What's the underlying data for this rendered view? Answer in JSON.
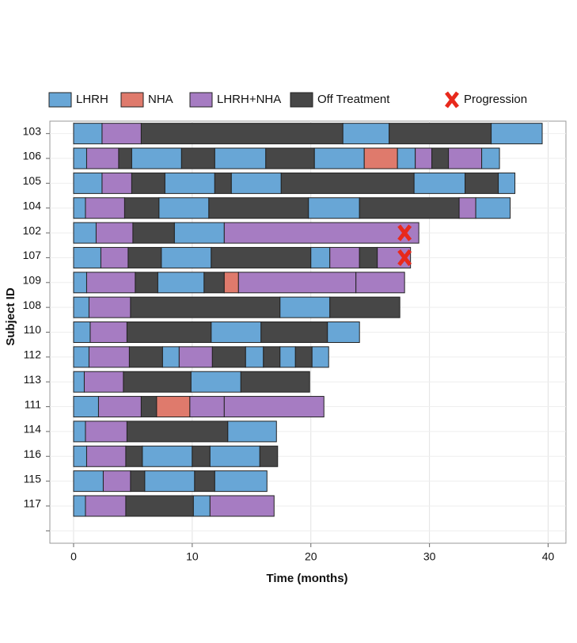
{
  "chart_data": {
    "type": "swimmer",
    "x_label": "Time (months)",
    "y_label": "Subject ID",
    "xlim": [
      -2,
      41.5
    ],
    "xticks": [
      0,
      10,
      20,
      30,
      40
    ],
    "grid": true,
    "legend_position": "top",
    "series": [
      {
        "name": "LHRH",
        "color": "#68a6d6"
      },
      {
        "name": "NHA",
        "color": "#df7a6c"
      },
      {
        "name": "LHRH+NHA",
        "color": "#a67cc2"
      },
      {
        "name": "Off Treatment",
        "color": "#474747"
      }
    ],
    "progression_label": "Progression",
    "progression_color": "#e8291c",
    "categories": [
      "103",
      "106",
      "105",
      "104",
      "102",
      "107",
      "109",
      "108",
      "110",
      "112",
      "113",
      "111",
      "114",
      "116",
      "115",
      "117",
      null
    ],
    "rows": [
      {
        "segments": [
          {
            "treatment": "LHRH",
            "duration": 2.4
          },
          {
            "treatment": "LHRH+NHA",
            "duration": 3.3
          },
          {
            "treatment": "Off Treatment",
            "duration": 17
          },
          {
            "treatment": "LHRH",
            "duration": 3.9
          },
          {
            "treatment": "Off Treatment",
            "duration": 8.6
          },
          {
            "treatment": "LHRH",
            "duration": 4.3
          }
        ]
      },
      {
        "segments": [
          {
            "treatment": "LHRH",
            "duration": 1.1
          },
          {
            "treatment": "LHRH+NHA",
            "duration": 2.7
          },
          {
            "treatment": "Off Treatment",
            "duration": 1.1
          },
          {
            "treatment": "LHRH",
            "duration": 4.2
          },
          {
            "treatment": "Off Treatment",
            "duration": 2.8
          },
          {
            "treatment": "LHRH",
            "duration": 4.3
          },
          {
            "treatment": "Off Treatment",
            "duration": 4.1
          },
          {
            "treatment": "LHRH",
            "duration": 4.2
          },
          {
            "treatment": "NHA",
            "duration": 2.8
          },
          {
            "treatment": "LHRH",
            "duration": 1.5
          },
          {
            "treatment": "LHRH+NHA",
            "duration": 1.4
          },
          {
            "treatment": "Off Treatment",
            "duration": 1.4
          },
          {
            "treatment": "LHRH+NHA",
            "duration": 2.8
          },
          {
            "treatment": "LHRH",
            "duration": 1.5
          }
        ]
      },
      {
        "segments": [
          {
            "treatment": "LHRH",
            "duration": 2.4
          },
          {
            "treatment": "LHRH+NHA",
            "duration": 2.5
          },
          {
            "treatment": "Off Treatment",
            "duration": 2.8
          },
          {
            "treatment": "LHRH",
            "duration": 4.2
          },
          {
            "treatment": "Off Treatment",
            "duration": 1.4
          },
          {
            "treatment": "LHRH",
            "duration": 4.2
          },
          {
            "treatment": "Off Treatment",
            "duration": 11.2
          },
          {
            "treatment": "LHRH",
            "duration": 4.3
          },
          {
            "treatment": "Off Treatment",
            "duration": 2.8
          },
          {
            "treatment": "LHRH",
            "duration": 1.4
          }
        ]
      },
      {
        "segments": [
          {
            "treatment": "LHRH",
            "duration": 1.0
          },
          {
            "treatment": "LHRH+NHA",
            "duration": 3.3
          },
          {
            "treatment": "Off Treatment",
            "duration": 2.9
          },
          {
            "treatment": "LHRH",
            "duration": 4.2
          },
          {
            "treatment": "Off Treatment",
            "duration": 8.4
          },
          {
            "treatment": "LHRH",
            "duration": 4.3
          },
          {
            "treatment": "Off Treatment",
            "duration": 8.4
          },
          {
            "treatment": "LHRH+NHA",
            "duration": 1.4
          },
          {
            "treatment": "LHRH",
            "duration": 2.9
          }
        ]
      },
      {
        "segments": [
          {
            "treatment": "LHRH",
            "duration": 1.9
          },
          {
            "treatment": "LHRH+NHA",
            "duration": 3.1
          },
          {
            "treatment": "Off Treatment",
            "duration": 3.5
          },
          {
            "treatment": "LHRH",
            "duration": 4.2
          },
          {
            "treatment": "LHRH+NHA",
            "duration": 16.4
          }
        ],
        "progression": 27.9
      },
      {
        "segments": [
          {
            "treatment": "LHRH",
            "duration": 2.3
          },
          {
            "treatment": "LHRH+NHA",
            "duration": 2.3
          },
          {
            "treatment": "Off Treatment",
            "duration": 2.8
          },
          {
            "treatment": "LHRH",
            "duration": 4.2
          },
          {
            "treatment": "Off Treatment",
            "duration": 8.4
          },
          {
            "treatment": "LHRH",
            "duration": 1.6
          },
          {
            "treatment": "LHRH+NHA",
            "duration": 2.5
          },
          {
            "treatment": "Off Treatment",
            "duration": 1.5
          },
          {
            "treatment": "LHRH+NHA",
            "duration": 2.8
          }
        ],
        "progression": 27.9
      },
      {
        "segments": [
          {
            "treatment": "LHRH",
            "duration": 1.1
          },
          {
            "treatment": "LHRH+NHA",
            "duration": 4.1
          },
          {
            "treatment": "Off Treatment",
            "duration": 1.9
          },
          {
            "treatment": "LHRH",
            "duration": 3.9
          },
          {
            "treatment": "Off Treatment",
            "duration": 1.7
          },
          {
            "treatment": "NHA",
            "duration": 1.2
          },
          {
            "treatment": "LHRH+NHA",
            "duration": 9.9
          },
          {
            "treatment": "LHRH+NHA",
            "duration": 4.1
          }
        ]
      },
      {
        "segments": [
          {
            "treatment": "LHRH",
            "duration": 1.3
          },
          {
            "treatment": "LHRH+NHA",
            "duration": 3.5
          },
          {
            "treatment": "Off Treatment",
            "duration": 12.6
          },
          {
            "treatment": "LHRH",
            "duration": 4.2
          },
          {
            "treatment": "Off Treatment",
            "duration": 5.9
          }
        ]
      },
      {
        "segments": [
          {
            "treatment": "LHRH",
            "duration": 1.4
          },
          {
            "treatment": "LHRH+NHA",
            "duration": 3.1
          },
          {
            "treatment": "Off Treatment",
            "duration": 7.1
          },
          {
            "treatment": "LHRH",
            "duration": 4.2
          },
          {
            "treatment": "Off Treatment",
            "duration": 5.6
          },
          {
            "treatment": "LHRH",
            "duration": 2.7
          }
        ]
      },
      {
        "segments": [
          {
            "treatment": "LHRH",
            "duration": 1.3
          },
          {
            "treatment": "LHRH+NHA",
            "duration": 3.4
          },
          {
            "treatment": "Off Treatment",
            "duration": 2.8
          },
          {
            "treatment": "LHRH",
            "duration": 1.4
          },
          {
            "treatment": "LHRH+NHA",
            "duration": 2.8
          },
          {
            "treatment": "Off Treatment",
            "duration": 2.8
          },
          {
            "treatment": "LHRH",
            "duration": 1.5
          },
          {
            "treatment": "Off Treatment",
            "duration": 1.4
          },
          {
            "treatment": "LHRH",
            "duration": 1.3
          },
          {
            "treatment": "Off Treatment",
            "duration": 1.4
          },
          {
            "treatment": "LHRH",
            "duration": 1.4
          }
        ]
      },
      {
        "segments": [
          {
            "treatment": "LHRH",
            "duration": 0.9
          },
          {
            "treatment": "LHRH+NHA",
            "duration": 3.3
          },
          {
            "treatment": "Off Treatment",
            "duration": 5.7
          },
          {
            "treatment": "LHRH",
            "duration": 4.2
          },
          {
            "treatment": "Off Treatment",
            "duration": 5.8
          }
        ]
      },
      {
        "segments": [
          {
            "treatment": "LHRH",
            "duration": 2.1
          },
          {
            "treatment": "LHRH+NHA",
            "duration": 3.6
          },
          {
            "treatment": "Off Treatment",
            "duration": 1.3
          },
          {
            "treatment": "NHA",
            "duration": 2.8
          },
          {
            "treatment": "LHRH+NHA",
            "duration": 2.9
          },
          {
            "treatment": "LHRH+NHA",
            "duration": 8.4
          }
        ]
      },
      {
        "segments": [
          {
            "treatment": "LHRH",
            "duration": 1.0
          },
          {
            "treatment": "LHRH+NHA",
            "duration": 3.5
          },
          {
            "treatment": "Off Treatment",
            "duration": 8.5
          },
          {
            "treatment": "LHRH",
            "duration": 4.1
          }
        ]
      },
      {
        "segments": [
          {
            "treatment": "LHRH",
            "duration": 1.1
          },
          {
            "treatment": "LHRH+NHA",
            "duration": 3.3
          },
          {
            "treatment": "Off Treatment",
            "duration": 1.4
          },
          {
            "treatment": "LHRH",
            "duration": 4.2
          },
          {
            "treatment": "Off Treatment",
            "duration": 1.5
          },
          {
            "treatment": "LHRH",
            "duration": 4.2
          },
          {
            "treatment": "Off Treatment",
            "duration": 1.5
          }
        ]
      },
      {
        "segments": [
          {
            "treatment": "LHRH",
            "duration": 2.5
          },
          {
            "treatment": "LHRH+NHA",
            "duration": 2.3
          },
          {
            "treatment": "Off Treatment",
            "duration": 1.2
          },
          {
            "treatment": "LHRH",
            "duration": 4.2
          },
          {
            "treatment": "Off Treatment",
            "duration": 1.7
          },
          {
            "treatment": "LHRH",
            "duration": 4.4
          }
        ]
      },
      {
        "segments": [
          {
            "treatment": "LHRH",
            "duration": 1.0
          },
          {
            "treatment": "LHRH+NHA",
            "duration": 3.4
          },
          {
            "treatment": "Off Treatment",
            "duration": 5.7
          },
          {
            "treatment": "LHRH",
            "duration": 1.4
          },
          {
            "treatment": "LHRH+NHA",
            "duration": 5.4
          }
        ]
      }
    ]
  }
}
